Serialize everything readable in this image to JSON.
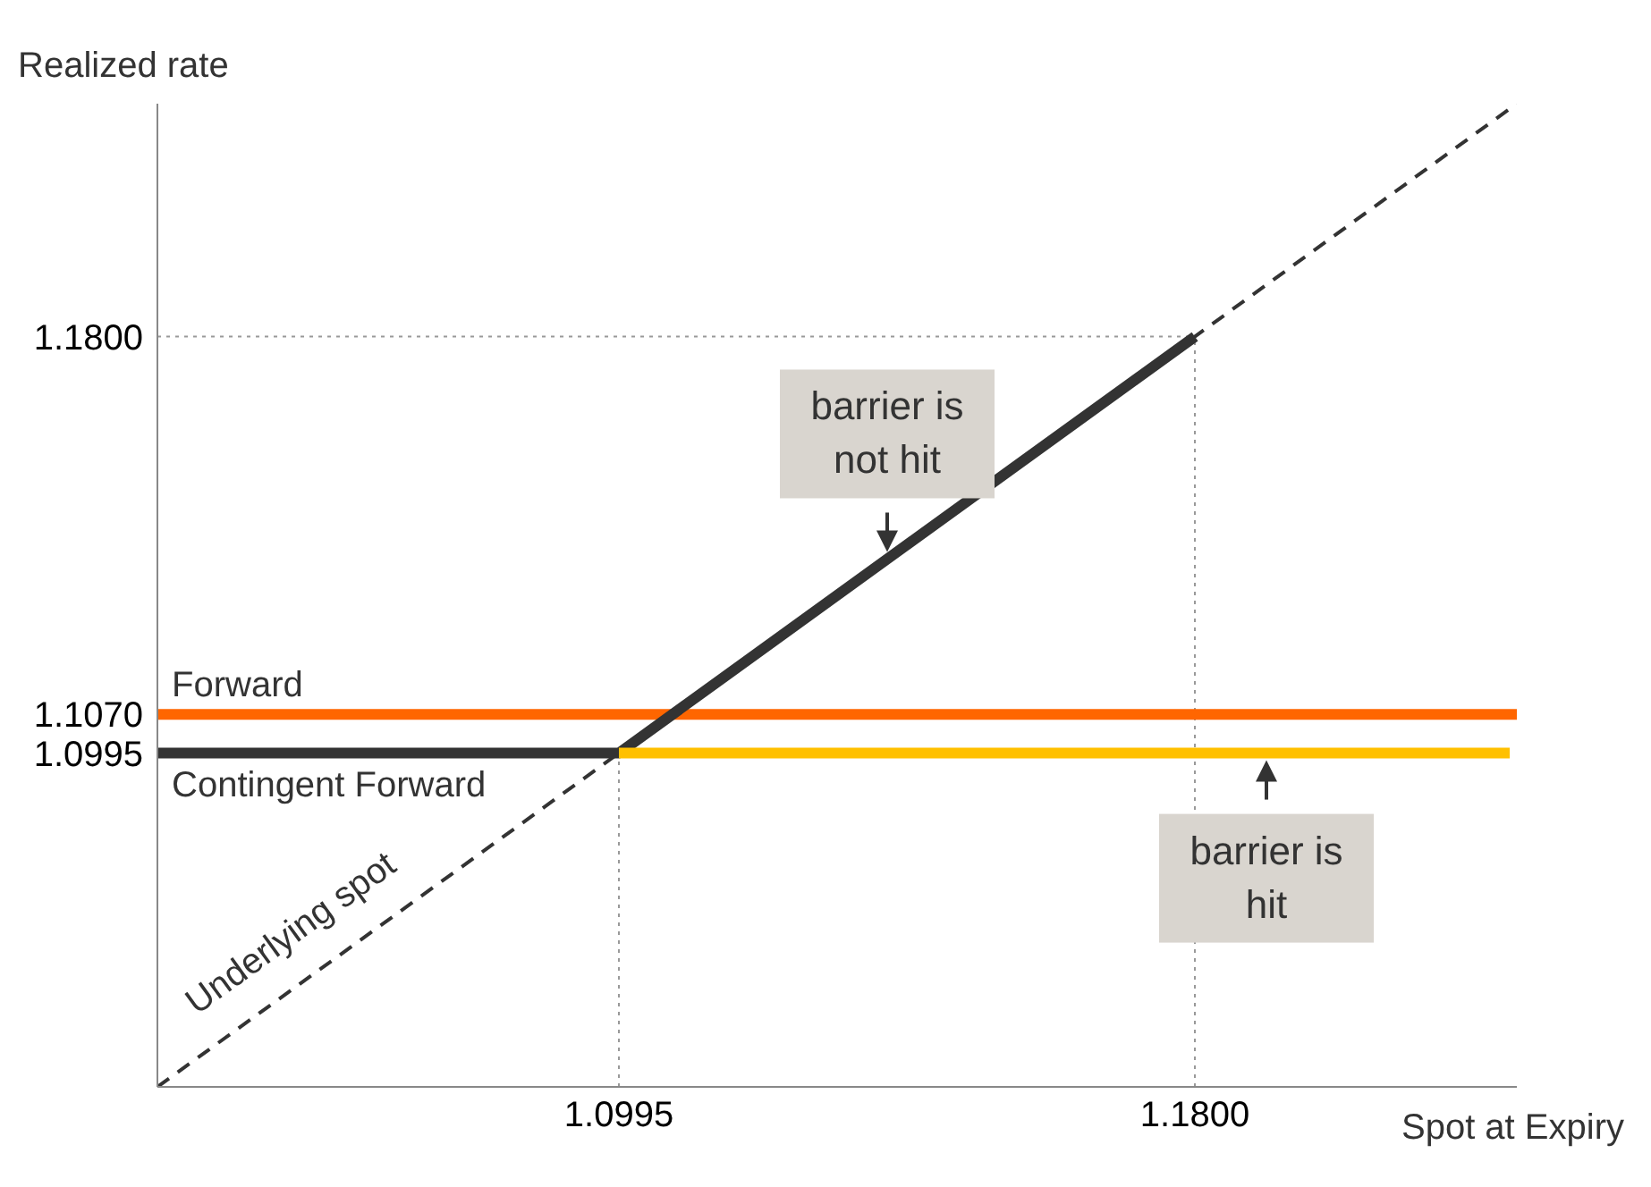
{
  "chart_data": {
    "type": "line",
    "xlabel": "Spot at Expiry",
    "ylabel": "Realized rate",
    "xlim": [
      1.035,
      1.225
    ],
    "ylim": [
      1.035,
      1.225
    ],
    "xticks": [
      1.0995,
      {
        "value": 1.18,
        "label": "1.1800"
      }
    ],
    "yticks": [
      1.0995,
      {
        "value": 1.107,
        "label": "1.1070"
      },
      {
        "value": 1.18,
        "label": "1.1800"
      }
    ],
    "grid": false,
    "legend": false,
    "marker": "none",
    "series": [
      {
        "name": "Underlying spot",
        "color": "#333333",
        "line_style": "dashed",
        "x": [
          1.035,
          1.225
        ],
        "values": [
          1.035,
          1.225
        ]
      },
      {
        "name": "Forward",
        "color": "#ff6600",
        "line_style": "solid",
        "x": [
          1.035,
          1.225
        ],
        "values": [
          1.107,
          1.107
        ]
      },
      {
        "name": "Contingent Forward",
        "color": "#333333",
        "line_style": "solid",
        "x": [
          1.035,
          1.0995,
          1.18
        ],
        "values": [
          1.0995,
          1.0995,
          1.18
        ]
      },
      {
        "color": "#ffc000",
        "line_style": "solid",
        "x": [
          1.0995,
          1.224
        ],
        "values": [
          1.0995,
          1.0995
        ]
      }
    ],
    "ref_lines": [
      {
        "axis": "x",
        "value": 1.0995,
        "color": "#999999",
        "line_style": "dotted"
      },
      {
        "axis": "x",
        "value": 1.18,
        "color": "#999999",
        "line_style": "dotted"
      },
      {
        "axis": "y",
        "value": 1.18,
        "color": "#999999",
        "line_style": "dotted"
      }
    ],
    "annotations": [
      {
        "text": "barrier is not hit",
        "x": 1.137,
        "y": 1.137
      },
      {
        "text": "barrier is hit",
        "x": 1.19,
        "y": 1.0995
      }
    ]
  }
}
